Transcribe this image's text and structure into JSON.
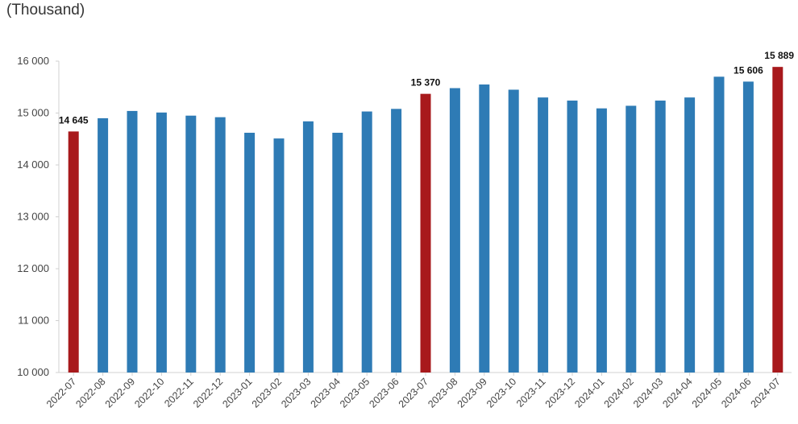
{
  "unit_label": "(Thousand)",
  "chart_data": {
    "type": "bar",
    "title": "",
    "xlabel": "",
    "ylabel": "(Thousand)",
    "ylim": [
      10000,
      16000
    ],
    "yticks": [
      10000,
      11000,
      12000,
      13000,
      14000,
      15000,
      16000
    ],
    "ytick_labels": [
      "10 000",
      "11 000",
      "12 000",
      "13 000",
      "14 000",
      "15 000",
      "16 000"
    ],
    "grid": false,
    "legend": "none",
    "colors": {
      "default": "#2E7BB5",
      "highlight": "#A8191C"
    },
    "categories": [
      "2022-07",
      "2022-08",
      "2022-09",
      "2022-10",
      "2022-11",
      "2022-12",
      "2023-01",
      "2023-02",
      "2023-03",
      "2023-04",
      "2023-05",
      "2023-06",
      "2023-07",
      "2023-08",
      "2023-09",
      "2023-10",
      "2023-11",
      "2023-12",
      "2024-01",
      "2024-02",
      "2024-03",
      "2024-04",
      "2024-05",
      "2024-06",
      "2024-07"
    ],
    "values": [
      14645,
      14900,
      15040,
      15010,
      14950,
      14920,
      14620,
      14510,
      14840,
      14620,
      15030,
      15080,
      15370,
      15480,
      15550,
      15450,
      15300,
      15240,
      15090,
      15140,
      15240,
      15300,
      15700,
      15606,
      15889
    ],
    "highlight_indices": [
      0,
      12,
      24
    ],
    "data_labels": [
      {
        "index": 0,
        "text": "14 645"
      },
      {
        "index": 12,
        "text": "15 370"
      },
      {
        "index": 23,
        "text": "15 606"
      },
      {
        "index": 24,
        "text": "15 889"
      }
    ]
  }
}
